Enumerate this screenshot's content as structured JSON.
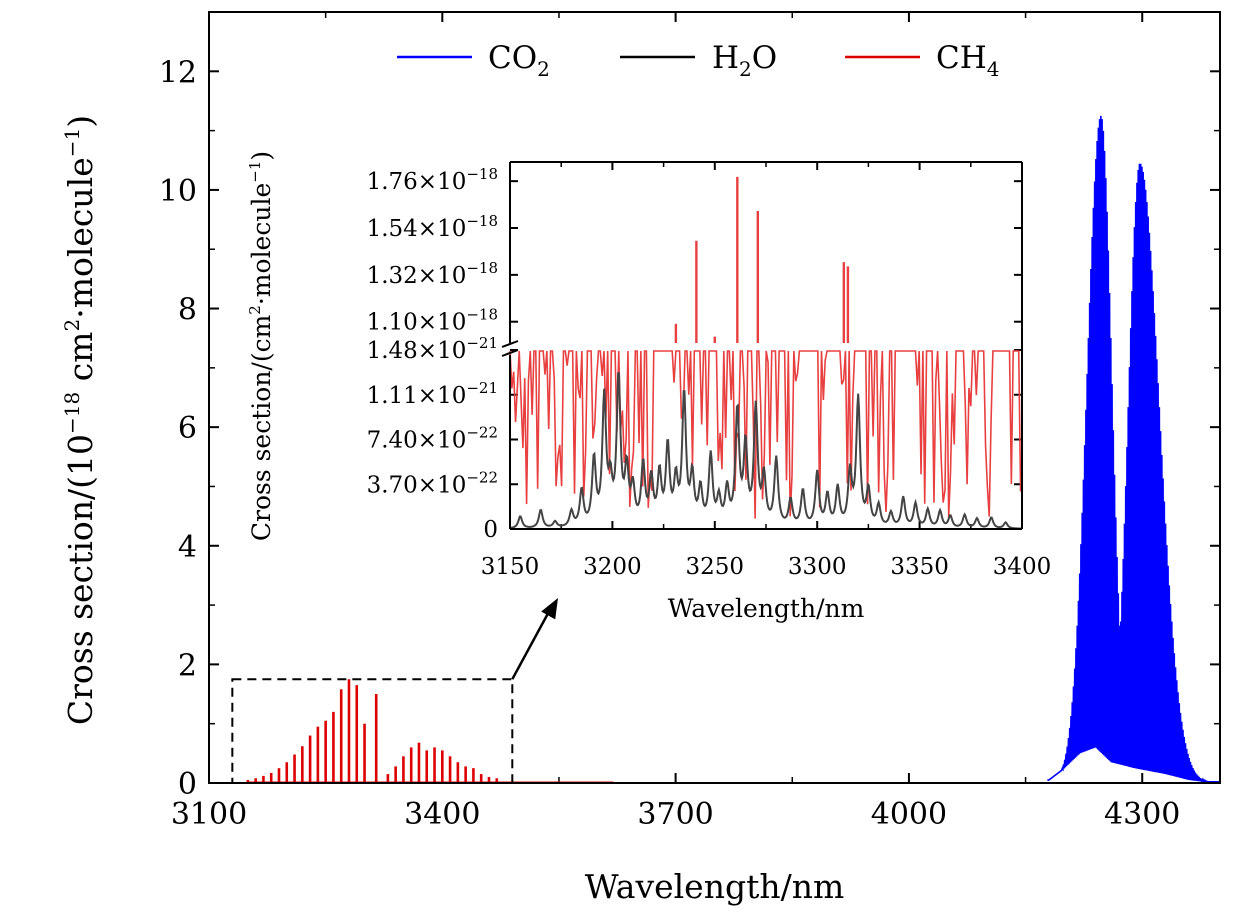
{
  "chart_data": [
    {
      "id": "main",
      "type": "line",
      "xlabel": "Wavelength/nm",
      "ylabel_parts": [
        "Cross section/(10",
        "−18",
        " cm",
        "2",
        "·molecule",
        "−1",
        ")"
      ],
      "xlim": [
        3100,
        4400
      ],
      "ylim": [
        0,
        13
      ],
      "xticks": [
        3100,
        3400,
        3700,
        4000,
        4300
      ],
      "xtick_labels": [
        "3100",
        "3400",
        "3700",
        "4000",
        "4300"
      ],
      "yticks": [
        0,
        2,
        4,
        6,
        8,
        10,
        12
      ],
      "ytick_labels": [
        "0",
        "2",
        "4",
        "6",
        "8",
        "10",
        "12"
      ],
      "legend_position": "top",
      "legend": [
        {
          "base": "CO",
          "sub": "2",
          "tail": "",
          "color": "#0000ff"
        },
        {
          "base": "H",
          "sub": "2",
          "tail": "O",
          "color": "#000000"
        },
        {
          "base": "CH",
          "sub": "4",
          "tail": "",
          "color": "#dd0000"
        }
      ],
      "series": [
        {
          "name": "CH4",
          "color": "#dd0000",
          "lines_x": [
            3150,
            3160,
            3170,
            3180,
            3190,
            3200,
            3210,
            3220,
            3230,
            3240,
            3250,
            3260,
            3270,
            3280,
            3290,
            3300,
            3315,
            3330,
            3340,
            3350,
            3360,
            3370,
            3380,
            3390,
            3400,
            3410,
            3420,
            3430,
            3440,
            3450,
            3460,
            3470
          ],
          "lines_y": [
            0.05,
            0.08,
            0.12,
            0.17,
            0.25,
            0.35,
            0.48,
            0.62,
            0.8,
            0.95,
            1.05,
            1.2,
            1.58,
            1.75,
            1.65,
            1.0,
            1.5,
            0.15,
            0.28,
            0.45,
            0.6,
            0.68,
            0.55,
            0.6,
            0.55,
            0.45,
            0.35,
            0.28,
            0.25,
            0.15,
            0.1,
            0.08
          ]
        },
        {
          "name": "CO2",
          "color": "#0000ff",
          "branches": [
            {
              "center": 4247,
              "peak": 11.25,
              "sigma_left": 18,
              "sigma_right": 14
            },
            {
              "center": 4297,
              "peak": 10.45,
              "sigma_left": 15,
              "sigma_right": 25
            }
          ],
          "trough_envelope": [
            [
              4180,
              0.05
            ],
            [
              4200,
              0.25
            ],
            [
              4220,
              0.5
            ],
            [
              4240,
              0.6
            ],
            [
              4260,
              0.35
            ],
            [
              4275,
              0.3
            ],
            [
              4290,
              0.25
            ],
            [
              4310,
              0.2
            ],
            [
              4330,
              0.15
            ],
            [
              4360,
              0.05
            ],
            [
              4380,
              0.02
            ]
          ]
        },
        {
          "name": "H2O",
          "color": "#000000",
          "baseline": 0
        }
      ],
      "annotation": {
        "zoom_box_x": [
          3130,
          3490
        ],
        "zoom_box_y": [
          0,
          1.75
        ]
      }
    },
    {
      "id": "inset",
      "type": "line",
      "xlabel": "Wavelength/nm",
      "ylabel_parts": [
        "Cross section/(cm",
        "2",
        "·molecule",
        "−1",
        ")"
      ],
      "xlim": [
        3150,
        3400
      ],
      "xticks": [
        3150,
        3200,
        3250,
        3300,
        3350,
        3400
      ],
      "xtick_labels": [
        "3150",
        "3200",
        "3250",
        "3300",
        "3350",
        "3400"
      ],
      "broken_axis": true,
      "upper_ylim": [
        1e-18,
        1.85e-18
      ],
      "upper_yticks": [
        1.1e-18,
        1.32e-18,
        1.54e-18,
        1.76e-18
      ],
      "upper_ytick_labels": [
        {
          "mantissa": "1.10",
          "exp": "−18"
        },
        {
          "mantissa": "1.32",
          "exp": "−18"
        },
        {
          "mantissa": "1.54",
          "exp": "−18"
        },
        {
          "mantissa": "1.76",
          "exp": "−18"
        }
      ],
      "lower_ylim": [
        0,
        1.48e-21
      ],
      "lower_yticks": [
        0,
        3.7e-22,
        7.4e-22,
        1.11e-21,
        1.48e-21
      ],
      "lower_ytick_labels": [
        {
          "mantissa": "0",
          "exp": ""
        },
        {
          "mantissa": "3.70",
          "exp": "−22"
        },
        {
          "mantissa": "7.40",
          "exp": "−22"
        },
        {
          "mantissa": "1.11",
          "exp": "−21"
        },
        {
          "mantissa": "1.48",
          "exp": "−21"
        }
      ],
      "series": [
        {
          "name": "CH4 (upper segment)",
          "color": "#e84040",
          "lines_x": [
            3231,
            3241,
            3250,
            3261,
            3271,
            3313,
            3315
          ],
          "lines_y": [
            1.09e-18,
            1.48e-18,
            1.03e-18,
            1.78e-18,
            1.62e-18,
            1.38e-18,
            1.36e-18
          ]
        },
        {
          "name": "H2O",
          "color": "#444444",
          "hwhm": 1.1,
          "lines_x": [
            3155,
            3165,
            3172,
            3180,
            3185,
            3191,
            3196,
            3199,
            3203,
            3207,
            3210,
            3215,
            3219,
            3223,
            3227,
            3231,
            3235,
            3239,
            3243,
            3248,
            3252,
            3256,
            3261,
            3265,
            3270,
            3274,
            3280,
            3287,
            3293,
            3300,
            3305,
            3310,
            3316,
            3320,
            3325,
            3330,
            3336,
            3342,
            3348,
            3354,
            3360,
            3365,
            3372,
            3378,
            3385,
            3392
          ],
          "lines_y": [
            1e-22,
            1.5e-22,
            5e-23,
            1.3e-22,
            3e-22,
            5.5e-22,
            1.05e-21,
            3.2e-22,
            1.22e-21,
            4.5e-22,
            3e-22,
            5e-22,
            3.8e-22,
            4.2e-22,
            6.5e-22,
            3.6e-22,
            1.08e-21,
            4e-22,
            3e-22,
            5.8e-22,
            2.2e-22,
            3e-22,
            9.5e-22,
            6.5e-22,
            9.7e-22,
            4e-22,
            5.6e-22,
            2.2e-22,
            3e-22,
            4.5e-22,
            2.6e-22,
            3.2e-22,
            4.4e-22,
            1.06e-21,
            3e-22,
            1.8e-22,
            1.2e-22,
            2.5e-22,
            2e-22,
            1.5e-22,
            1.4e-22,
            1e-22,
            1.1e-22,
            8e-23,
            9e-23,
            5e-23
          ]
        }
      ]
    }
  ]
}
